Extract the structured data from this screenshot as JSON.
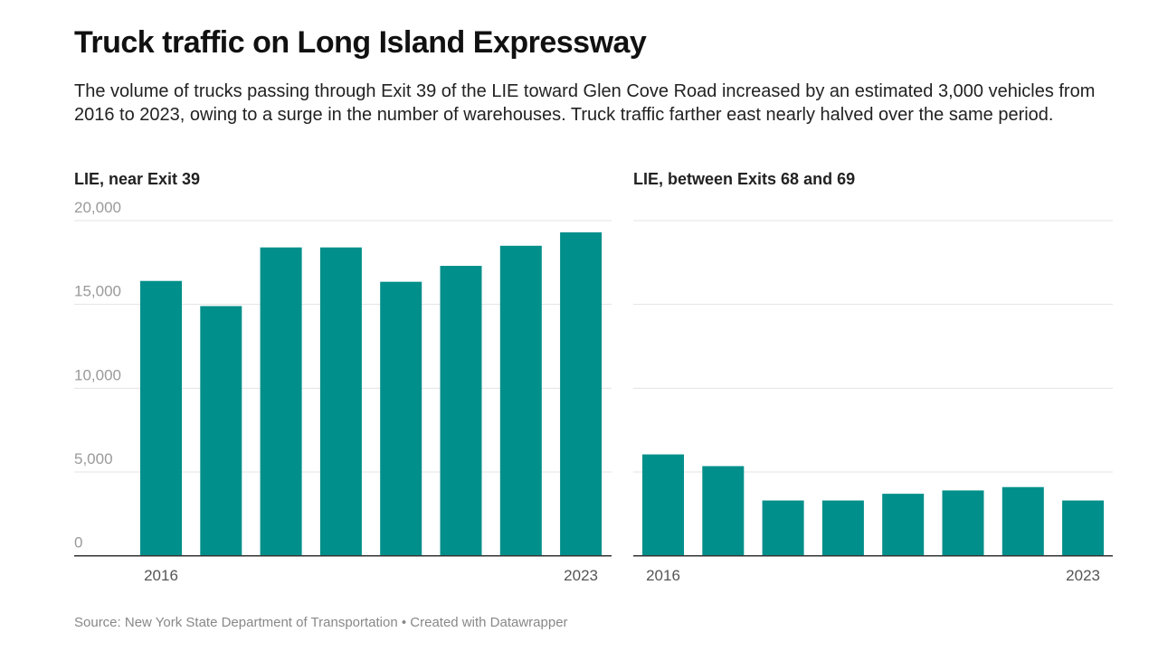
{
  "title": "Truck traffic on Long Island Expressway",
  "subtitle": "The volume of trucks passing through Exit 39 of the LIE toward Glen Cove Road increased by an estimated 3,000 vehicles from 2016 to 2023, owing to a surge in the number of warehouses. Truck traffic farther east nearly halved over the same period.",
  "source": "Source: New York State Department of Transportation • Created with Datawrapper",
  "chart_data": [
    {
      "type": "bar",
      "title": "LIE, near Exit 39",
      "categories": [
        "2016",
        "2017",
        "2018",
        "2019",
        "2020",
        "2021",
        "2022",
        "2023"
      ],
      "x_tick_labels": [
        "2016",
        "2023"
      ],
      "values": [
        16400,
        14900,
        18400,
        18400,
        16350,
        17300,
        18500,
        19300
      ],
      "ylim": [
        0,
        20000
      ],
      "y_ticks": [
        "0",
        "5,000",
        "10,000",
        "15,000",
        "20,000"
      ],
      "grid": true,
      "color": "#008f8a"
    },
    {
      "type": "bar",
      "title": "LIE, between Exits 68 and 69",
      "categories": [
        "2016",
        "2017",
        "2018",
        "2019",
        "2020",
        "2021",
        "2022",
        "2023"
      ],
      "x_tick_labels": [
        "2016",
        "2023"
      ],
      "values": [
        6050,
        5350,
        3300,
        3300,
        3700,
        3900,
        4100,
        3300
      ],
      "ylim": [
        0,
        20000
      ],
      "grid": true,
      "color": "#008f8a"
    }
  ]
}
